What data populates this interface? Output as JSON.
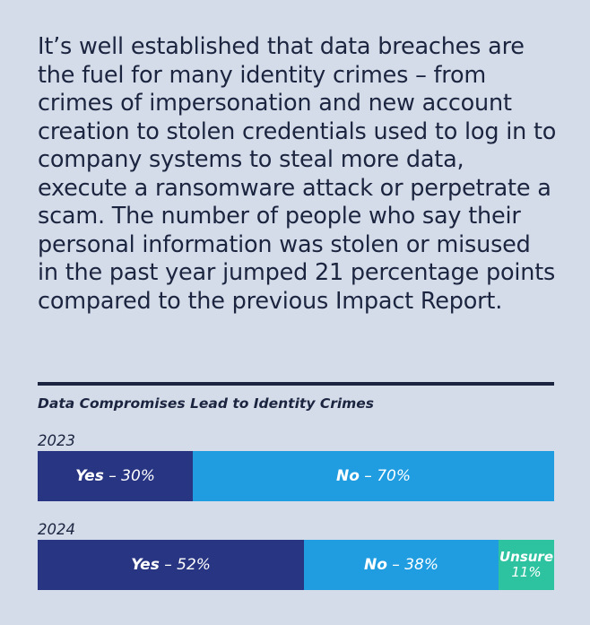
{
  "intro_text": "It’s well established that data breaches are the fuel for many identity crimes – from crimes of impersonation and new account creation to stolen credentials used to log in to company systems to steal more data, execute a ransomware attack or perpetrate a scam. The number of people who say their personal information was stolen or misused in the past year jumped 21 percentage points compared to the previous Impact Report.",
  "colors": {
    "background": "#d5dce9",
    "yes": "#283582",
    "no": "#1f9de0",
    "unsure": "#2ec3a0",
    "text": "#1b2540"
  },
  "chart_data": {
    "type": "bar",
    "orientation": "horizontal-stacked-100",
    "title": "Data Compromises Lead to Identity Crimes",
    "categories": [
      "2023",
      "2024"
    ],
    "series": [
      {
        "name": "Yes",
        "values": [
          30,
          52
        ],
        "labels": [
          "30%",
          "52%"
        ]
      },
      {
        "name": "No",
        "values": [
          70,
          38
        ],
        "labels": [
          "70%",
          "38%"
        ]
      },
      {
        "name": "Unsure",
        "values": [
          0,
          11
        ],
        "labels": [
          "",
          "11%"
        ]
      }
    ],
    "separator": "–"
  }
}
